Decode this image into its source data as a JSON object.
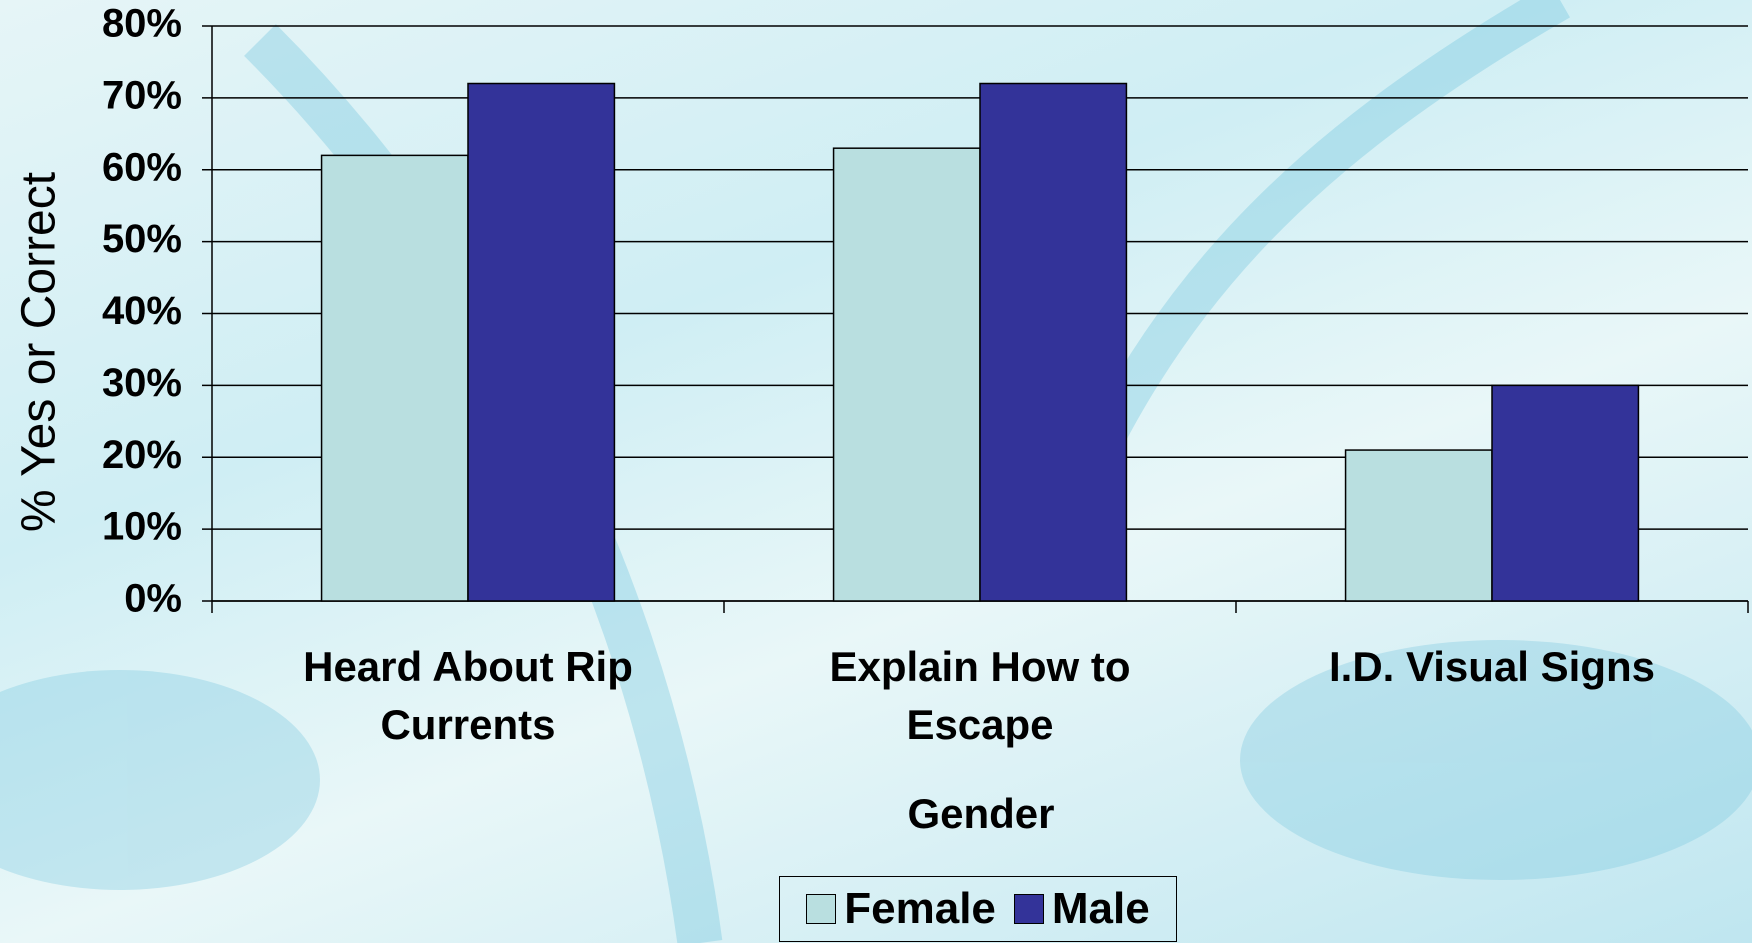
{
  "chart_data": {
    "type": "bar",
    "y_label": "% Yes or Correct",
    "x_label": "Gender",
    "categories": [
      "Heard About Rip Currents",
      "Explain How to Escape",
      "I.D. Visual Signs"
    ],
    "series": [
      {
        "name": "Female",
        "color": "#b9dfe0",
        "values": [
          62,
          63,
          21
        ]
      },
      {
        "name": "Male",
        "color": "#333399",
        "values": [
          72,
          72,
          30
        ]
      }
    ],
    "ylim": [
      0,
      80
    ],
    "yticks": [
      {
        "value": 0,
        "label": "0%"
      },
      {
        "value": 10,
        "label": "10%"
      },
      {
        "value": 20,
        "label": "20%"
      },
      {
        "value": 30,
        "label": "30%"
      },
      {
        "value": 40,
        "label": "40%"
      },
      {
        "value": 50,
        "label": "50%"
      },
      {
        "value": 60,
        "label": "60%"
      },
      {
        "value": 70,
        "label": "70%"
      },
      {
        "value": 80,
        "label": "80%"
      }
    ],
    "grid": true,
    "legend": "bottom"
  }
}
